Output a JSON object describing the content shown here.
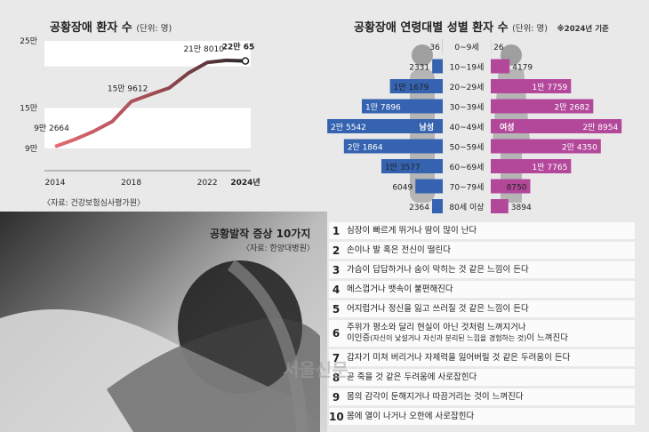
{
  "left_chart": {
    "title": "공황장애 환자 수",
    "unit": "(단위: 명)",
    "source": "〈자료: 건강보험심사평가원〉"
  },
  "right_chart": {
    "title": "공황장애 연령대별 성별 환자 수",
    "unit": "(단위: 명)",
    "note": "※2024년 기준",
    "male_label": "남성",
    "female_label": "여성"
  },
  "symptoms": {
    "title": "공황발작 증상 10가지",
    "source": "〈자료: 한양대병원〉",
    "items": [
      {
        "num": "1",
        "text": "심장이 빠르게 뛰거나 땀이 많이 난다"
      },
      {
        "num": "2",
        "text": "손이나 발 혹은 전신이 떨린다"
      },
      {
        "num": "3",
        "text": "가슴이 답답하거나 숨이 막히는 것 같은 느낌이 든다"
      },
      {
        "num": "4",
        "text": "메스껍거나 뱃속이 불편해진다"
      },
      {
        "num": "5",
        "text": "어지럽거나 정신을 잃고 쓰러질 것 같은 느낌이 든다"
      },
      {
        "num": "6",
        "text": "주위가 평소와 달리 현실이 아닌 것처럼 느껴지거나",
        "text2": "이인증",
        "text2_small": "(자신이 낯설거나 자신과 분리된 느낌을 경험하는 것)",
        "text2_tail": "이 느껴진다"
      },
      {
        "num": "7",
        "text": "갑자기 미쳐 버리거나 자제력을 잃어버릴 것 같은 두려움이 든다"
      },
      {
        "num": "8",
        "text": "곧 죽을 것 같은 두려움에 사로잡힌다"
      },
      {
        "num": "9",
        "text": "몸의 감각이 둔해지거나 따끔거리는 것이 느껴진다"
      },
      {
        "num": "10",
        "text": "몸에 열이 나거나 오한에 사로잡힌다"
      }
    ]
  },
  "watermark": "서울신문",
  "colors": {
    "male": "#3563b0",
    "female": "#b3489a",
    "line_start": "#e46a73",
    "line_end": "#2a2a2a",
    "band": "#ffffff"
  },
  "chart_data": [
    {
      "type": "line",
      "title": "공황장애 환자 수",
      "ylabel": "(단위: 명)",
      "y_ticks": [
        "9만",
        "15만",
        "25만"
      ],
      "y_tick_values": [
        90000,
        150000,
        250000
      ],
      "ylim": [
        70000,
        250000
      ],
      "x_ticks": [
        "2014",
        "2018",
        "2022",
        "2024년"
      ],
      "x": [
        2014,
        2015,
        2016,
        2017,
        2018,
        2019,
        2020,
        2021,
        2022,
        2023,
        2024
      ],
      "values": [
        92664,
        103000,
        115000,
        130000,
        159612,
        170000,
        180000,
        202000,
        218010,
        221000,
        220065
      ],
      "data_labels": [
        {
          "x": 2014,
          "text": "9만 2664"
        },
        {
          "x": 2018,
          "text": "15만 9612"
        },
        {
          "x": 2022,
          "text": "21만 8010"
        },
        {
          "x": 2024,
          "text": "22만 65",
          "main": "22만",
          "tail": "65"
        }
      ]
    },
    {
      "type": "bar",
      "title": "공황장애 연령대별 성별 환자 수",
      "categories": [
        "0~9세",
        "10~19세",
        "20~29세",
        "30~39세",
        "40~49세",
        "50~59세",
        "60~69세",
        "70~79세",
        "80세 이상"
      ],
      "series": [
        {
          "name": "남성",
          "values": [
            36,
            2331,
            11679,
            17896,
            25542,
            21864,
            13577,
            6049,
            2364
          ],
          "labels": [
            "36",
            "2331",
            "1만 1679",
            "1만 7896",
            "2만 5542",
            "2만 1864",
            "1만 3577",
            "6049",
            "2364"
          ]
        },
        {
          "name": "여성",
          "values": [
            26,
            4179,
            17759,
            22682,
            28954,
            24350,
            17765,
            8750,
            3894
          ],
          "labels": [
            "26",
            "4179",
            "1만 7759",
            "2만 2682",
            "2만 8954",
            "2만 4350",
            "1만 7765",
            "8750",
            "3894"
          ]
        }
      ]
    }
  ]
}
